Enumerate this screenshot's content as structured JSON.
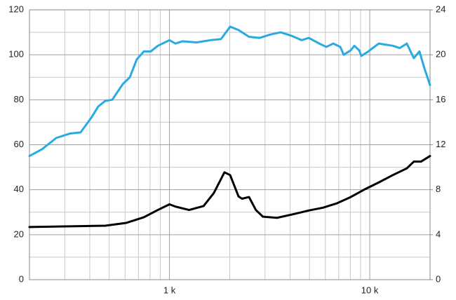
{
  "chart_data": {
    "type": "line",
    "x_scale": "log",
    "grid": true,
    "xlim": [
      200,
      20000
    ],
    "xticks": [
      {
        "value": 1000,
        "label": "1 k"
      },
      {
        "value": 10000,
        "label": "10 k"
      }
    ],
    "x_minor_ticks": [
      300,
      400,
      500,
      600,
      700,
      800,
      900,
      2000,
      3000,
      4000,
      5000,
      6000,
      7000,
      8000,
      9000
    ],
    "ylim": [
      0,
      120
    ],
    "yticks": [
      0,
      20,
      40,
      60,
      80,
      100,
      120
    ],
    "y_minor_ticks": [
      10,
      30,
      50,
      70,
      90,
      110
    ],
    "y2lim": [
      0,
      24
    ],
    "y2ticks": [
      0,
      4,
      8,
      12,
      16,
      20,
      24
    ],
    "series": [
      {
        "color": "#29abe2",
        "axis": "y",
        "x": [
          200,
          231,
          272,
          319,
          360,
          407,
          441,
          478,
          518,
          585,
          634,
          687,
          745,
          807,
          875,
          1000,
          1071,
          1161,
          1364,
          1603,
          1808,
          2009,
          2213,
          2496,
          2819,
          3184,
          3590,
          4055,
          4574,
          4957,
          5597,
          6067,
          6576,
          7129,
          7416,
          8038,
          8375,
          8856,
          9078,
          9840,
          11092,
          12023,
          13032,
          14126,
          15312,
          16596,
          17706,
          18748,
          20000
        ],
        "values": [
          55,
          58,
          63,
          65,
          65.5,
          72,
          77,
          79.5,
          80,
          87,
          90,
          98,
          101.5,
          101.5,
          104,
          106.5,
          105,
          106,
          105.5,
          106.5,
          107,
          112.5,
          111,
          108,
          107.5,
          109,
          110,
          108.5,
          106.5,
          107.5,
          105,
          103.5,
          105,
          103.5,
          100,
          102,
          104,
          102,
          99.5,
          101.5,
          105,
          104.5,
          104,
          103,
          105,
          98.5,
          101.5,
          94,
          86.5
        ]
      },
      {
        "color": "#000000",
        "axis": "y2",
        "x": [
          200,
          478,
          609,
          745,
          875,
          1000,
          1071,
          1253,
          1480,
          1665,
          1882,
          2009,
          2213,
          2303,
          2496,
          2700,
          2929,
          3445,
          4212,
          4957,
          5836,
          6875,
          8038,
          9478,
          11092,
          13032,
          15312,
          16596,
          18030,
          20000
        ],
        "values": [
          4.68,
          4.8,
          5.05,
          5.55,
          6.2,
          6.7,
          6.5,
          6.2,
          6.55,
          7.7,
          9.55,
          9.3,
          7.4,
          7.2,
          7.35,
          6.2,
          5.6,
          5.5,
          5.85,
          6.15,
          6.4,
          6.8,
          7.35,
          8.05,
          8.65,
          9.3,
          9.9,
          10.5,
          10.5,
          11.0
        ]
      }
    ]
  }
}
